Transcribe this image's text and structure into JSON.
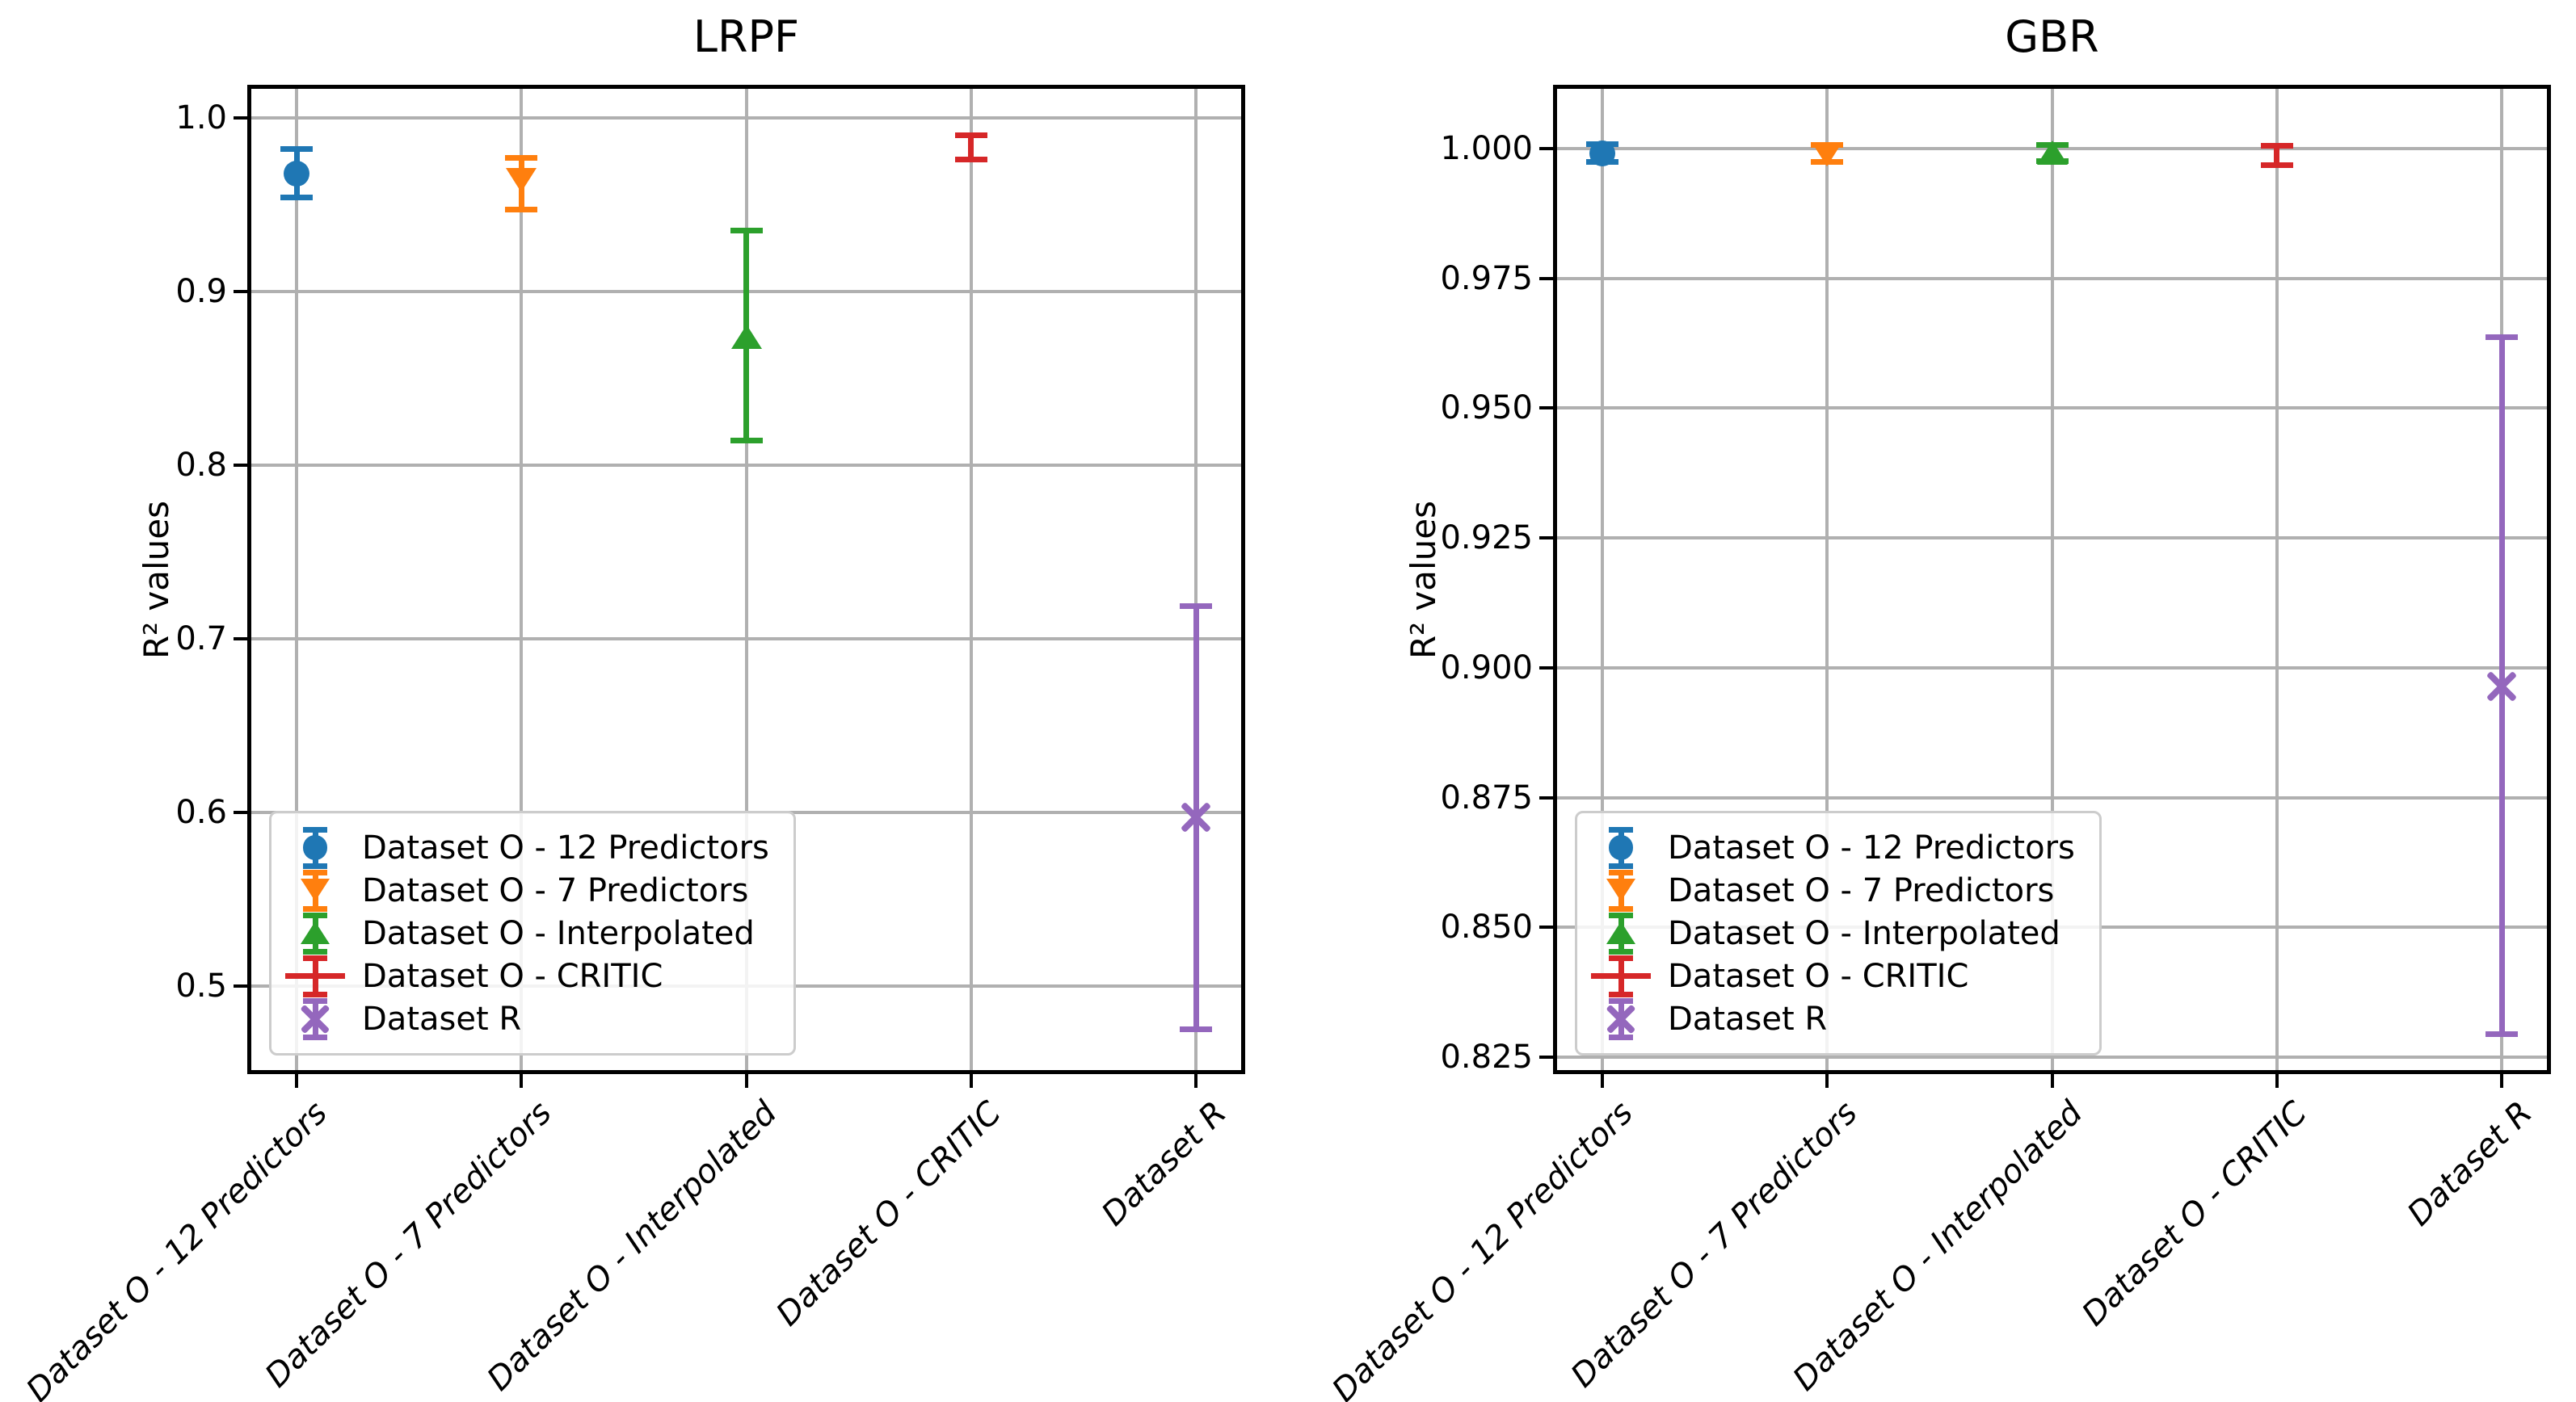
{
  "page": {
    "background": "#ffffff"
  },
  "chart_data": {
    "type": "errorbar",
    "description": "Two side-by-side error-bar plots of R-squared values per dataset variant",
    "categories": [
      "Dataset O - 12 Predictors",
      "Dataset O - 7 Predictors",
      "Dataset O - Interpolated",
      "Dataset O - CRITIC",
      "Dataset R"
    ],
    "series": [
      {
        "label": "Dataset O - 12 Predictors",
        "marker": "circle",
        "color": "#1f77b4"
      },
      {
        "label": "Dataset O - 7 Predictors",
        "marker": "triangle-down",
        "color": "#ff7f0e"
      },
      {
        "label": "Dataset O - Interpolated",
        "marker": "triangle-up",
        "color": "#2ca02c"
      },
      {
        "label": "Dataset O - CRITIC",
        "marker": "hline",
        "color": "#d62728"
      },
      {
        "label": "Dataset R",
        "marker": "x",
        "color": "#9467bd"
      }
    ],
    "grid": true,
    "grid_color": "#b0b0b0",
    "legend_position": "lower left",
    "charts": [
      {
        "title": "LRPF",
        "ylabel": "R² values",
        "ylim": [
          0.4516,
          1.0167
        ],
        "yticks": [
          {
            "value": 1.0,
            "label": "1.0"
          },
          {
            "value": 0.9,
            "label": "0.9"
          },
          {
            "value": 0.8,
            "label": "0.8"
          },
          {
            "value": 0.7,
            "label": "0.7"
          },
          {
            "value": 0.6,
            "label": "0.6"
          },
          {
            "value": 0.5,
            "label": "0.5"
          }
        ],
        "points": [
          {
            "series": "Dataset O - 12 Predictors",
            "value": 0.968,
            "err_lo": 0.954,
            "err_hi": 0.982
          },
          {
            "series": "Dataset O - 7 Predictors",
            "value": 0.964,
            "err_lo": 0.947,
            "err_hi": 0.977
          },
          {
            "series": "Dataset O - Interpolated",
            "value": 0.874,
            "err_lo": 0.814,
            "err_hi": 0.935
          },
          {
            "series": "Dataset O - CRITIC",
            "value": 0.983,
            "err_lo": 0.976,
            "err_hi": 0.99
          },
          {
            "series": "Dataset R",
            "value": 0.597,
            "err_lo": 0.475,
            "err_hi": 0.719
          }
        ]
      },
      {
        "title": "GBR",
        "ylabel": "R² values",
        "ylim": [
          0.8225,
          1.0115
        ],
        "yticks": [
          {
            "value": 1.0,
            "label": "1.000"
          },
          {
            "value": 0.975,
            "label": "0.975"
          },
          {
            "value": 0.95,
            "label": "0.950"
          },
          {
            "value": 0.925,
            "label": "0.925"
          },
          {
            "value": 0.9,
            "label": "0.900"
          },
          {
            "value": 0.875,
            "label": "0.875"
          },
          {
            "value": 0.85,
            "label": "0.850"
          },
          {
            "value": 0.825,
            "label": "0.825"
          }
        ],
        "points": [
          {
            "series": "Dataset O - 12 Predictors",
            "value": 0.999,
            "err_lo": 0.9974,
            "err_hi": 1.0008
          },
          {
            "series": "Dataset O - 7 Predictors",
            "value": 0.9989,
            "err_lo": 0.9974,
            "err_hi": 1.0007
          },
          {
            "series": "Dataset O - Interpolated",
            "value": 0.9992,
            "err_lo": 0.9976,
            "err_hi": 1.0007
          },
          {
            "series": "Dataset O - CRITIC",
            "value": 0.9986,
            "err_lo": 0.9968,
            "err_hi": 1.0005
          },
          {
            "series": "Dataset R",
            "value": 0.8964,
            "err_lo": 0.8294,
            "err_hi": 0.9637
          }
        ]
      }
    ]
  }
}
